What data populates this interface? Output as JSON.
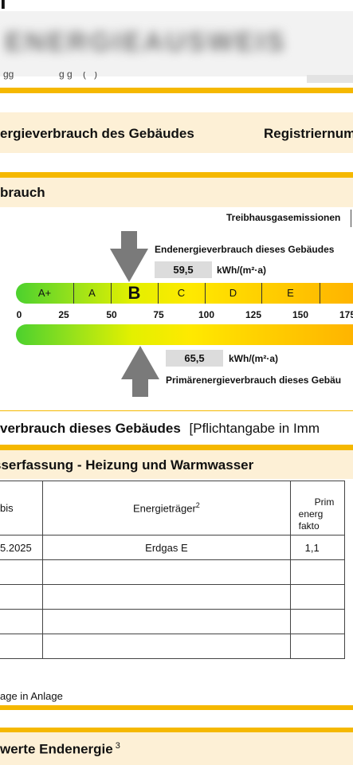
{
  "header": {
    "title_fragment": "i",
    "blurred_heading": "ENERGIEAUSWEIS",
    "partial_text": "gg                 g g    (   )"
  },
  "section1": {
    "left_title": "ergieverbrauch des Gebäudes",
    "right_title": "Registriernum"
  },
  "section2": {
    "title": "brauch",
    "ghg_label": "Treibhausgasemissionen"
  },
  "scale": {
    "classes": [
      "A+",
      "A",
      "B",
      "C",
      "D",
      "E"
    ],
    "active_class": "B",
    "ticks": [
      "0",
      "25",
      "50",
      "75",
      "100",
      "125",
      "150",
      "175"
    ]
  },
  "end_energy": {
    "label": "Endenergieverbrauch dieses Gebäudes",
    "value": "59,5",
    "unit": "kWh/(m²·a)"
  },
  "primary_energy": {
    "label": "Primärenergieverbrauch dieses Gebäu",
    "value": "65,5",
    "unit": "kWh/(m²·a)"
  },
  "mandatory_line": {
    "bold": "verbrauch dieses Gebäudes",
    "normal": "[Pflichtangabe in Imm"
  },
  "section3": {
    "title": "sserfassung - Heizung und Warmwasser",
    "columns": {
      "bis": "bis",
      "carrier": "Energieträger",
      "carrier_sup": "2",
      "factor": "Prim\nenerg\nfakto"
    },
    "rows": [
      {
        "bis": "5.2025",
        "carrier": "Erdgas E",
        "factor": "1,1"
      },
      {
        "bis": "",
        "carrier": "",
        "factor": ""
      },
      {
        "bis": "",
        "carrier": "",
        "factor": ""
      },
      {
        "bis": "",
        "carrier": "",
        "factor": ""
      },
      {
        "bis": "",
        "carrier": "",
        "factor": ""
      }
    ],
    "footnote": "age in Anlage"
  },
  "section4": {
    "title": "werte Endenergie",
    "sup": "3"
  },
  "colors": {
    "gold": "#f5b800",
    "beige": "#fdf0d6",
    "arrow": "#7a7a7a",
    "box": "#dcdcdc"
  }
}
